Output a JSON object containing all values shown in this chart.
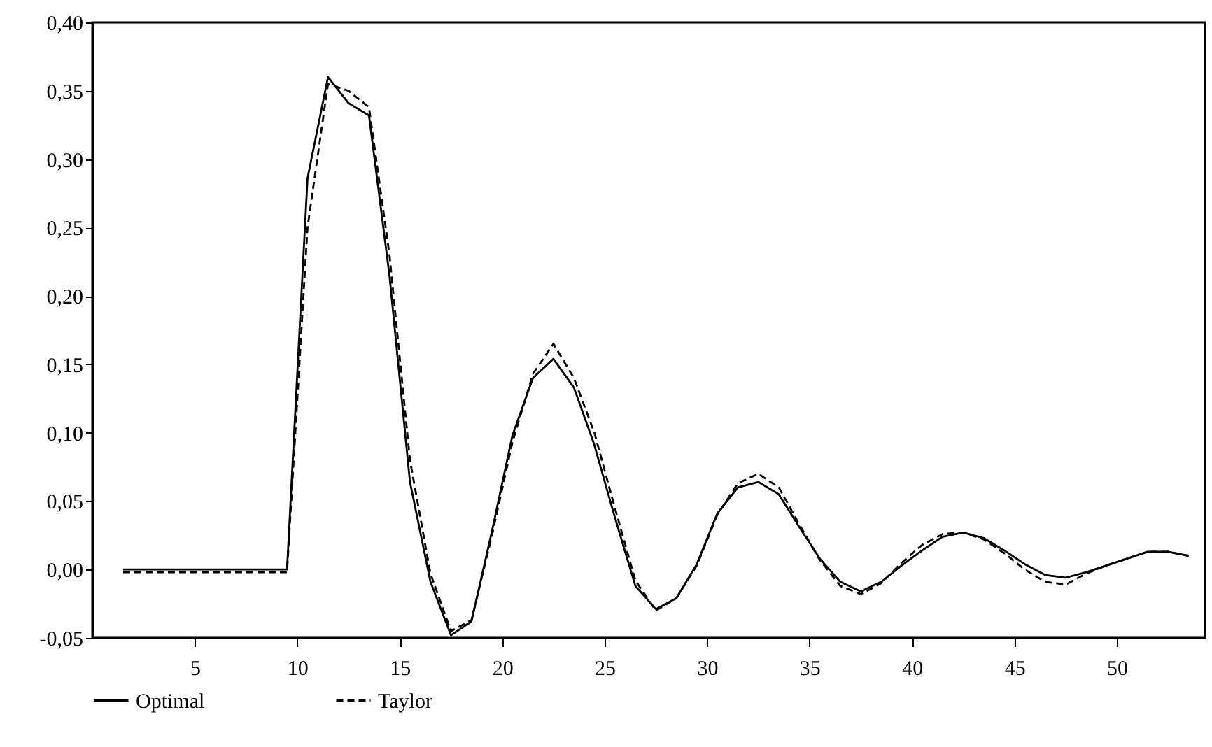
{
  "chart_data": {
    "type": "line",
    "legend": "bottom",
    "grid": false,
    "x": [
      1.5,
      2.5,
      3.5,
      4.5,
      5.5,
      6.5,
      7.5,
      8.5,
      9.5,
      10.5,
      11.5,
      12.5,
      13.5,
      14.5,
      15.5,
      16.5,
      17.5,
      18.5,
      19.5,
      20.5,
      21.5,
      22.5,
      23.5,
      24.5,
      25.5,
      26.5,
      27.5,
      28.5,
      29.5,
      30.5,
      31.5,
      32.5,
      33.5,
      34.5,
      35.5,
      36.5,
      37.5,
      38.5,
      39.5,
      40.5,
      41.5,
      42.5,
      43.5,
      44.5,
      45.5,
      46.5,
      47.5,
      48.5,
      49.5,
      50.5,
      51.5,
      52.5,
      53.5
    ],
    "xlim": [
      0,
      54.3
    ],
    "xticks": [
      5,
      10,
      15,
      20,
      25,
      30,
      35,
      40,
      45,
      50
    ],
    "ylim": [
      -0.05,
      0.4
    ],
    "yticks": [
      {
        "value": -0.05,
        "label": "-0,05"
      },
      {
        "value": 0,
        "label": "0,00"
      },
      {
        "value": 0.05,
        "label": "0,05"
      },
      {
        "value": 0.1,
        "label": "0,10"
      },
      {
        "value": 0.15,
        "label": "0,15"
      },
      {
        "value": 0.2,
        "label": "0,20"
      },
      {
        "value": 0.25,
        "label": "0,25"
      },
      {
        "value": 0.3,
        "label": "0,30"
      },
      {
        "value": 0.35,
        "label": "0,35"
      },
      {
        "value": 0.4,
        "label": "0,40"
      }
    ],
    "series": [
      {
        "name": "Optimal",
        "color": "#000000",
        "line_style": "solid",
        "values": [
          0,
          0,
          0,
          0,
          0,
          0,
          0,
          0,
          0,
          0.286,
          0.36,
          0.341,
          0.332,
          0.215,
          0.064,
          -0.009,
          -0.048,
          -0.038,
          0.028,
          0.098,
          0.14,
          0.154,
          0.133,
          0.091,
          0.038,
          -0.012,
          -0.029,
          -0.021,
          0.004,
          0.041,
          0.06,
          0.064,
          0.055,
          0.031,
          0.008,
          -0.009,
          -0.016,
          -0.009,
          0.003,
          0.014,
          0.024,
          0.027,
          0.023,
          0.014,
          0.004,
          -0.004,
          -0.006,
          -0.002,
          0.003,
          0.008,
          0.013,
          0.013,
          0.01
        ]
      },
      {
        "name": "Taylor",
        "color": "#000000",
        "line_style": "dashed",
        "values": [
          -0.002,
          -0.002,
          -0.002,
          -0.002,
          -0.002,
          -0.002,
          -0.002,
          -0.002,
          -0.002,
          0.25,
          0.355,
          0.35,
          0.338,
          0.23,
          0.08,
          -0.003,
          -0.045,
          -0.037,
          0.025,
          0.093,
          0.143,
          0.165,
          0.14,
          0.1,
          0.045,
          -0.008,
          -0.03,
          -0.021,
          0.003,
          0.04,
          0.063,
          0.07,
          0.06,
          0.033,
          0.007,
          -0.012,
          -0.018,
          -0.01,
          0.005,
          0.018,
          0.026,
          0.027,
          0.022,
          0.012,
          0,
          -0.009,
          -0.011,
          -0.003,
          0.003,
          0.008,
          0.013,
          0.013,
          0.01
        ]
      }
    ]
  }
}
